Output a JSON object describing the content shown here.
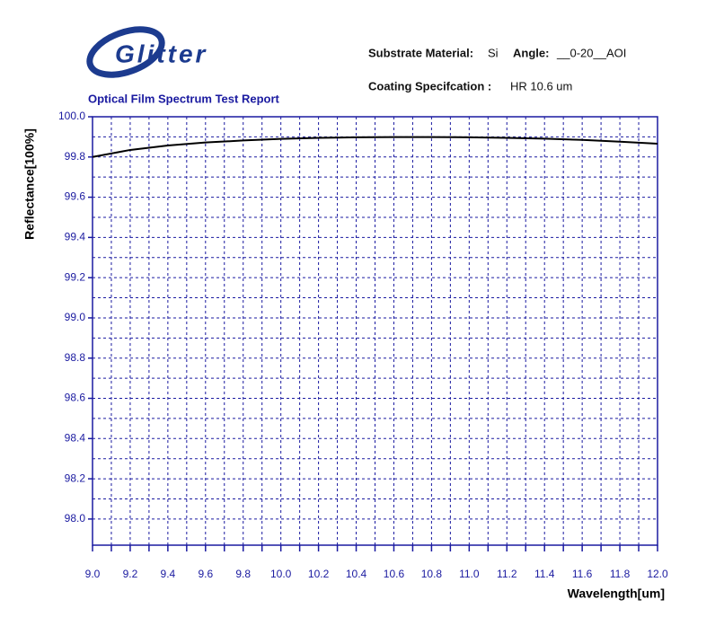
{
  "logo": "Glitter",
  "header": {
    "substrate_label": "Substrate Material:",
    "substrate": "Si",
    "angle_label": "Angle:",
    "angle": "__0-20__AOI",
    "coating_label": "Coating Specifcation :",
    "coating": "HR 10.6 um"
  },
  "chart_data": {
    "type": "line",
    "title": "Optical Film Spectrum Test Report",
    "x_label": "Wavelength[um]",
    "y_label": "Reflectance[100%]",
    "x": [
      9.0,
      9.2,
      9.4,
      9.6,
      9.8,
      10.0,
      10.2,
      10.4,
      10.6,
      10.8,
      11.0,
      11.2,
      11.4,
      11.6,
      11.8,
      12.0
    ],
    "series": [
      {
        "name": "Reflectance",
        "color": "#000000",
        "values": [
          99.8,
          99.835,
          99.857,
          99.872,
          99.882,
          99.89,
          99.895,
          99.898,
          99.899,
          99.899,
          99.898,
          99.895,
          99.891,
          99.885,
          99.876,
          99.866
        ]
      }
    ],
    "xlim": [
      9.0,
      12.0
    ],
    "xticks": [
      {
        "value": 9,
        "label": "9.0"
      },
      9.2,
      9.4,
      9.6,
      9.8,
      {
        "value": 10,
        "label": "10.0"
      },
      10.2,
      10.4,
      10.6,
      10.8,
      {
        "value": 11,
        "label": "11.0"
      },
      11.2,
      11.4,
      11.6,
      11.8,
      {
        "value": 12,
        "label": "12.0"
      }
    ],
    "ylim": [
      97.87,
      100.0
    ],
    "yticks": [
      {
        "value": 98,
        "label": "98.0"
      },
      98.2,
      98.4,
      98.6,
      98.8,
      {
        "value": 99,
        "label": "99.0"
      },
      99.2,
      99.4,
      99.6,
      99.8,
      {
        "value": 100,
        "label": "100.0"
      }
    ],
    "grid": true,
    "axis_color": "#1a1aa0"
  }
}
